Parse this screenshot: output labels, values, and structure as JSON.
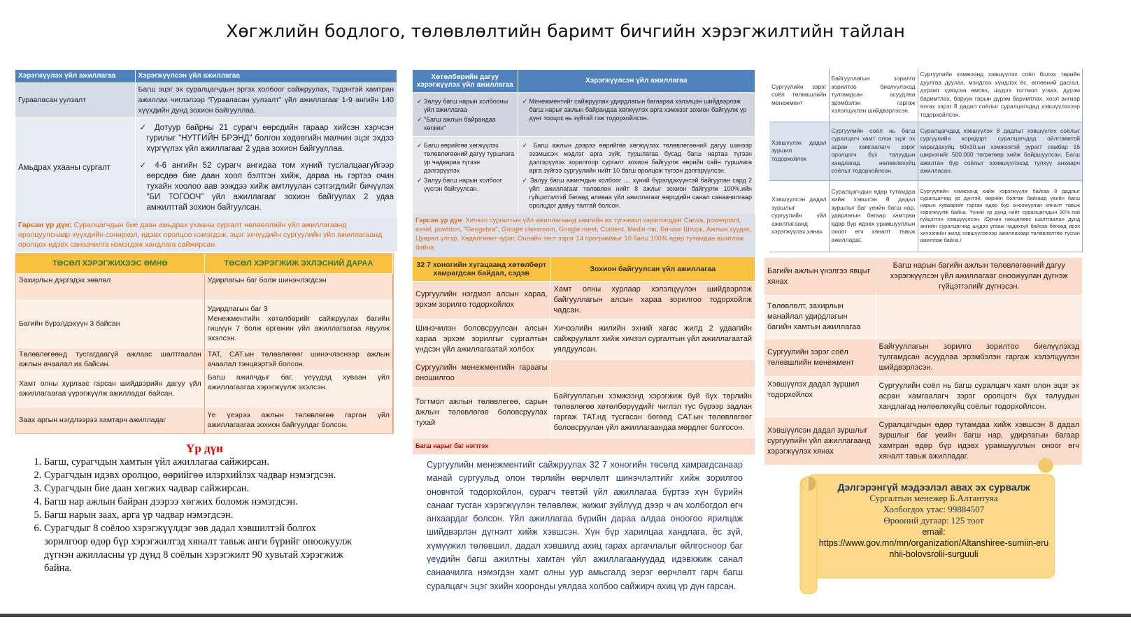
{
  "title": "Хөгжлийн бодлого, төлөвлөлтийн баримт бичгийн хэрэгжилтийн тайлан",
  "left_table": {
    "headers": [
      "Хэрэгжүүлэх үйл ажиллагаа",
      "Хэрэгжүүлсэн үйл ажиллагаа"
    ],
    "rows": [
      {
        "activity": "Гуравласан уулзалт",
        "done": "Багш эцэг эх суралцагчдын эргэх холбоог сайжруулах, тэдэнтэй хамтран ажиллах чиглэлээр “Гуравласан уулзалт” үйл ажиллагааг 1-9 ангийн 140 хүүхдийн дунд зохион байгууллаа."
      },
      {
        "activity": "Амьдрах ухааны сургалт",
        "done1": "Дотуур байрны 21 сурагч өөрсдийн гараар хийсэн хэрчсэн гурилыг \"НУТГИЙН БРЭНД\" болгон хөдөөгийн малчин эцэг эхдээ хүргүүлэх үйл ажиллагааг 2 удаа зохион байгууллаа.",
        "done2": "4-6 ангийн 52 сурагч ангидаа том хүний туслалцаагүйгээр өөрсдөө бие даан хоол бэлтгэн хийж, дараа нь гэртээ очин тухайн хоолоо аав ээждээ хийж амтлуулан сэтгэгдлийг бичүүлэх “БИ ТОГООЧ” үйл ажиллагааг зохион байгуулах 2 удаа амжилттай зохион байгуулсан."
      }
    ],
    "result_label": "Гарсан үр дүн:",
    "result_text": "Суралцагчдын бие даан амьдрах ухааны сургалт нөлөөллийн үйл ажиллагаанд оролцуулснаар хүүхдийн сонирхол, идэвх оролцоо нэмэгдэж, эцэг эхчүүдийн сургуулийн үйл ажиллагаанд оролцох идэвх санаачилга нэмэгдэж хандлага сайжирсан."
  },
  "project_table": {
    "headers": [
      "ТӨСӨЛ ХЭРЭГЖИХЭЭС ӨМНӨ",
      "ТӨСӨЛ ХЭРЭГЖИЖ ЭХЛЭСНИЙ ДАРАА"
    ],
    "rows": [
      [
        "Захирлын дэргэдэх зөвлөл",
        "Удирлагын баг болж шинэчлэгдсэн"
      ],
      [
        "Багийн бүрэлдэхүүн 3 байсан",
        "Удирдлагын баг 3\nМенежментийн хөтөлбөрийг сайжруулах багийн гишүүн 7 болж өргөжин үйл ажиллагаагаа явуулж эхэлсэн."
      ],
      [
        "Төлөвлөгөөнд тусгагдаагүй ажлаас шалтгаалан ажлын ачаалал их байсан.",
        "ТАТ, САТ.ын төлөвлөгөөг шинэчлэснээр ажлын ачаалал тэнцвэртэй болсон."
      ],
      [
        "Хамт олны хурлаас гарсан шийдвэрийн дагуу үйл ажиллагаагаа үүрэгжүүлж ажилладаг байсан.",
        "Багш ажилчдыг баг, үеүүдэд хуваан үйл ажиллагаагаа хэрэгжүүлж эхэлсэн."
      ],
      [
        "Заах аргын нэгдлээрээ хамтарч ажилладаг",
        "Үе үеэрээ ажлын төлөвлөгөө гарган үйл ажиллагаагаа зохион байгуулдаг болсон."
      ]
    ]
  },
  "results": {
    "heading": "Үр дүн",
    "items": [
      "Багш, сурагчдын хамтын үйл ажиллагаа сайжирсан.",
      "Сурагчдын идэвх оролцоо, өөрийгөө илэрхийлэх чадвар нэмэгдсэн.",
      "Сурагчдын бие даан хөгжих чадвар сайжирсан.",
      "Багш нар ажлын байран дээрээ хөгжих боломж нэмэгдсэн.",
      "Багш нарын заах, арга үр чадвар нэмэгдсэн.",
      "Сурагчдыг 8 соёлоо хэрэгжүүлдэг зөв дадал хэвшилтэй болгох зорилгоор өдөр бүр хэрэгжилтэд хяналт тавьж анги бүрийг оноожуулж дүгнэн ажилласны үр дүнд 8 соёлын хэрэгжилт 90 хувьтай хэрэгжиж байна."
    ]
  },
  "mid_table": {
    "headers": [
      "Хөтөлбөрийн дагуу хэрэгжүүлэх үйл ажиллагаа",
      "Хэрэгжүүлсэн үйл ажиллагаа"
    ],
    "rows": [
      {
        "plan": [
          "Залуу багш нарын холбооны үйл ажиллагаа",
          "\"Багш ажлын байрандаа хөгжих\""
        ],
        "done": [
          "Менежментийг сайжруулах удирдлагын багаараа хэлэлцэн шийдвэрлэж багш нарыг ажлын байрандаа хөгжүүлэх арга хэмжээг зохион байгуулж үр дүнг тооцох нь зүйтэй гэж тодорхойлсон."
        ]
      },
      {
        "plan": [
          "Багш өөрийгөө хөгжүүлэх төлөвлөгөөний дагуу туршлага ур чадвараа түгээн дэлгэрүүлэх",
          "Залуу багш нарын холбоог үүсгэн байгуулсан."
        ],
        "done": [
          "Багш ажлын дээрээ өөрийгөө хөгжүүлэх төлөвлөгөөний дагуу шинээр эзэмшсэн мэдлэг арга зүйг, туршлагаа бусад багш нартаа түгээн дэлгэрүүлэх зорилгоор сургалт зохион байгуулж өөрийн сайн туршлага арга зүйгээ сургуулийн нийт 10 багш оролцож түгээн дэлгэрүүлсэн.",
          "Залуу багш ажилчдын холбоог .... хүний бүрэлдэхүүнтэй байгуулан сард 2 үйл ажиллагааг төлөвлөн нийт 8 ажлыг зохион байгуулж 100%.ийн гүйцэтгэлтэй бөгөөд аливаа үйл ажиллагааг өөрсдийн санал санаачилгаар оролцдог давуу талтай болсон."
        ]
      }
    ],
    "result_label": "Гарсан үр дүн",
    "result_text": ": Хичээл сургалтын үйл ажиллагаанд хамгийн их түгээмэл хэрэглэгддэг Canva, powerpoint, exsel, powtoon, \"Geogebra\", Google classroom, Google meet, Content, Medle.mn, Бичлэг Шторк, Ажлын хуудас, Цуврал үлгэр, Хөдөлгөөнт зураг, Онлайн тест зэрэг 14 программыг 10 багш 100% өдөр тутамдаа ашиглаж байна."
  },
  "week_table": {
    "headers": [
      "32 7 хоногийн хугацаанд хөтөлбөрт хамрагдсан байдал, сэдэв",
      "Зохион байгуулсан үйл ажиллагаа"
    ],
    "rows": [
      [
        "Сургуулийн нэгдмэл алсын хараа, эрхэм зорилго тодорхойлох",
        "Хамт олны хурлаар хэлэлцүүлэн шийдвэрлэж байгууллагын алсын хараа зорилгоо тодорхойлж чадсан."
      ],
      [
        "Шинэчилэн боловсруулсан алсын хараа эрхэм зорилгыг сургалтын үндсэн үйл ажиллагаатай холбох",
        "Хичээлийн жилийн эхний хагас жилд 2 удаагийн сайжруулалт хийж хичээл сургалтын үйл ажиллагаатай уялдуулсан."
      ],
      [
        "Сургуулийн менежментийн гараагы оношилгоо",
        ""
      ],
      [
        "Тогтмол ажлын төлөвлөгөө, сарын ажлын төлөвлөгөө боловсруулах тухай",
        "Байгууллагын хэмжээнд хэрэгжиж буй бүх төрлийн төлөвлөгөө хөтөлбөрүүдийг чиглэл тус бүрээр задлан гаргаж ТАТ.нд тусгасан бөгөөд САТ.ын төлөвлөгөөг боловсруулан үйл ажиллагаандаа мөрдлөг болгосон."
      ],
      [
        "Багш нарыг баг нэгтгэх",
        ""
      ]
    ]
  },
  "paragraph": "Сургуулийн менежментийг сайжруулах 32 7 хоногийн төсөлд хамрагдсанаар манай сургуульд олон төрлийн өөрчлөлт шинэчлэлтийг хийж зорилгоо оновчтой тодорхойлон, сурагч төвтэй үйл ажиллагаа бүртээ хүн бүрийн санааг тусган хэрэгжүүлэн төлөвлөж, жижиг зүйлүүд дээр ч ач холбогдол өгч анхаардаг болсон. Үйл ажиллагаа бүрийн дараа алдаа оноогоо ярилцаж шийдвэрлэн дүгнэлт хийж хэвшсэн. Хүн бүр харилцаа хандлага, ёс зүй, хүмүүжил төлөвшил, дадал хэвшилд ахиц гарах аргачлалыг өйлгосноор баг үеүдийн багш ажилтны хамтач үйл ажиллагаануудад идэвхжиж санал санаачилга нэмэгдэн хамт олны уур амьсгалд эерэг өөрчлөлт гарч багш суралцагч эцэг эхийн хооронды уялдаа холбоо сайжирч ахиц үр дүн гарсан.",
  "culture_table": {
    "rows": [
      [
        "Сургуулийн зэрэг соёл төлөвшлийн менежмент",
        "Байгууллагын зорилго зорилтоо биелүүлэхэд тулгамдсан асуудлаа эрэмбэлэн гаргаж хэлэлцүүлэн шийдвэрлэсэн.",
        "Сургуулийн хэмжээнд хэвшүүлэх соёл болох төрийн дуулгаа дуулах, мэндлэх хүндлэх ёс, өглөөний дасгал, дүрэмт хувцсаа өмсөх, шүдээ тогтмол угаах, дүрэм баримтлах, баруун гарын дүрэм баримтлах, хоол ангиар ялгах зэрэг 8 дадал соёлыг суралцагчдад хэвшүүлэхээр тодорхойлсон."
      ],
      [
        "Хэвшүүлэх дадал зуршил тодорхойлох",
        "Сургуулийн соёл нь багш суралцагч хамт олон эцэг эх асран хамгаалагч зэрэг оролцогч бүх талуудын хандлагад нөлөөлөхүйц соёлыг тодорхойлсон.",
        "Суралцагчдад хэвшүүлэх 8 дадлыг хэвшүүлэх соёлыг сургуулийн коридорт суралцагчдад ойлгомжтой харагдахуйц 60х30.ын хэмжээтэй зурагт самбар 16 ширхэгийг 500.000 төгрөгөөр хийж байршуулсан. Багш ажилтан бүр соёлыг эзэмшүүлэхэд тулхүү анхаарч ажилласан."
      ],
      [
        "Хэвшүүлсэн дадал зуршлыг сургуулийн үйл ажиллагаанд хэрэгжүүлэх хянах",
        "Суралцагчдын өдөр тутамдаа хийж хэвшсэн 8 дадал зуршлыг баг үеийн багш нар, удирлагын багаар хамтран өдөр бүр идэвх урамшууллын оноог өгч хяналт тавьж ажилладаг.",
        "Сургуулийн хэмжээнд хийж хэрэгжүүлж байгаа 8 дадлыг суралцагчид үр дүнтэй, өөрийн болгож байгаад үеийн багш нарын хуваарийг гарган өдөр бүр оноожуулан хяналт тавьж хэрэгжүүлж байна. Үүний үр дүнд нийт суралцагчдын 90%.тай гүйцэтгэн хэвшүүүлсэн. /Орчин нөхцөлөөс шалтгаалан дунд ангийн суралцагчид шүдээ угааж чадахгүй байгаа бөгөөд ирэх хичээлийн жилд хэвшүүлэхээр ажиллахаар төлөвлөлтөө тусган ажиллаж байна./"
      ]
    ]
  },
  "team_table": {
    "rows": [
      [
        "Багийн ажлын үнэлгээ явцыг хянах",
        "Багш нарын багийн ажлын төлөвлөгөөний дагуу хэрэгжүүлсэн үйл ажиллагааг оноожуулан дүгнэж гүйцэтгэлийг дүгнэсэн."
      ],
      [
        "Төлөвлөлт, захирлын манайлал удирдлагын багийн хамтын ажиллагаа",
        ""
      ],
      [
        "Сургуулийн зэрэг соёл төлөвшлийн менежмент",
        "Байгууллагын зорилго зорилтоо биелүүлэхэд тулгамдсан асуудлаа эрэмбэлэн гаргаж хэлэлцүүлэн шийдвэрлэсэн."
      ],
      [
        "Хэвшүүлэх дадал зуршил тодорхойлох",
        "Сургуулийн соёл нь багш суралцагч хамт олон эцэг эх асран хамгаалагч зэрэг оролцогч бүх талуудын хандлагад нөлөөлөхүйц соёлыг тодорхойлсон."
      ],
      [
        "Хэвшүүлсэн дадал зуршлыг сургуулийн үйл ажиллагаанд хэрэгжүүлэх хянах",
        "Суралцагчдын өдөр тутамдаа хийж хэвшсэн 8 дадал зуршлыг баг үеийн багш нар, удирлагын багаар хамтран өдөр бүр идэвх урамшууллын оноог өгч хяналт тавьж ажилладаг."
      ]
    ]
  },
  "contact": {
    "heading": "Дэлгэрэнгүй мэдээлэл авах эх сурвалж",
    "manager": "Сургалтын менежер  Б.Алтантуяа",
    "phone": "Холбогдох утас: 99884507",
    "room": "Өрөөний дугаар: 125 тоот",
    "email_label": "email:",
    "url": "https://www.gov.mn/mn/organization/Altanshiree-sumiin-erunhii-bolovsrolii-surguuli"
  },
  "colors": {
    "blue_header": "#4F81BD",
    "orange_header": "#FAC040",
    "result_orange": "#E46C0A",
    "result_red": "#E00000",
    "scroll_fill": "#FDD98A"
  }
}
